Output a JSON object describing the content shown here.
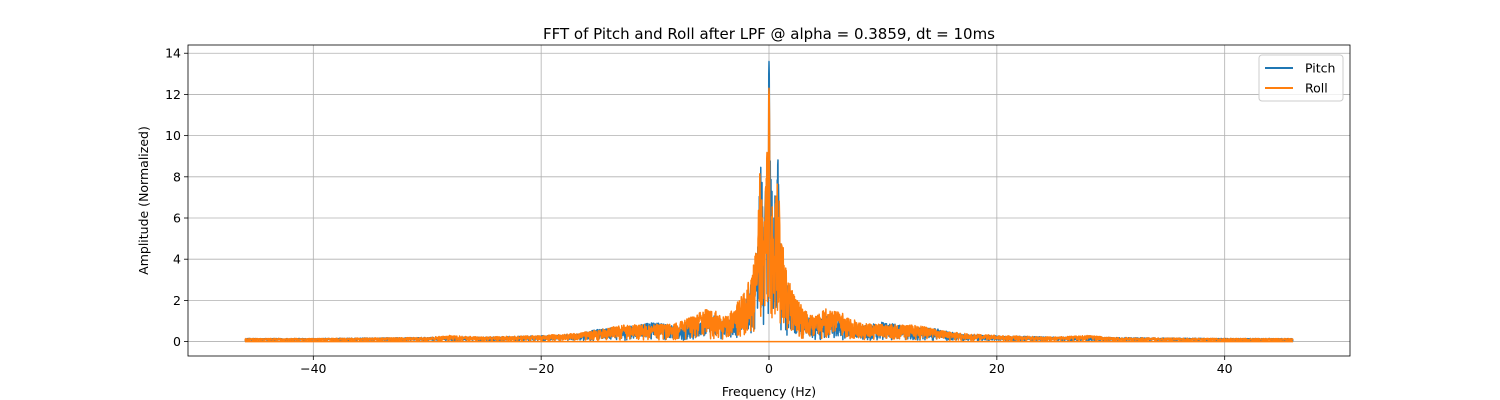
{
  "chart_data": {
    "type": "line",
    "title": "FFT of Pitch and Roll after LPF @ alpha = 0.3859, dt = 10ms",
    "xlabel": "Frequency (Hz)",
    "ylabel": "Amplitude (Normalized)",
    "xlim": [
      -51,
      51
    ],
    "ylim": [
      -0.7,
      14.4
    ],
    "xticks": [
      -40,
      -20,
      0,
      20,
      40
    ],
    "yticks": [
      0,
      2,
      4,
      6,
      8,
      10,
      12,
      14
    ],
    "xtick_labels": [
      "−40",
      "−20",
      "0",
      "20",
      "40"
    ],
    "ytick_labels": [
      "0",
      "2",
      "4",
      "6",
      "8",
      "10",
      "12",
      "14"
    ],
    "grid": true,
    "legend_position": "top-right",
    "x_range": [
      -46,
      46
    ],
    "series": [
      {
        "name": "Pitch",
        "color": "#1f77b4",
        "envelope": [
          [
            -46,
            0.15
          ],
          [
            -40,
            0.15
          ],
          [
            -30,
            0.2
          ],
          [
            -25,
            0.22
          ],
          [
            -20,
            0.28
          ],
          [
            -17,
            0.35
          ],
          [
            -15,
            0.6
          ],
          [
            -12,
            0.75
          ],
          [
            -10,
            0.95
          ],
          [
            -8,
            0.75
          ],
          [
            -6,
            1.0
          ],
          [
            -5,
            1.4
          ],
          [
            -4,
            1.0
          ],
          [
            -3,
            1.3
          ],
          [
            -2,
            2.0
          ],
          [
            -1.5,
            3.0
          ],
          [
            -1,
            5.0
          ],
          [
            -0.8,
            9.2
          ],
          [
            -0.5,
            7.0
          ],
          [
            -0.2,
            8.0
          ],
          [
            0,
            13.6
          ],
          [
            0.2,
            8.0
          ],
          [
            0.5,
            7.0
          ],
          [
            0.8,
            9.2
          ],
          [
            1,
            5.0
          ],
          [
            1.5,
            3.0
          ],
          [
            2,
            2.0
          ],
          [
            3,
            1.3
          ],
          [
            4,
            1.0
          ],
          [
            5,
            1.4
          ],
          [
            6,
            1.0
          ],
          [
            8,
            0.75
          ],
          [
            10,
            0.95
          ],
          [
            12,
            0.75
          ],
          [
            15,
            0.6
          ],
          [
            17,
            0.35
          ],
          [
            20,
            0.28
          ],
          [
            25,
            0.22
          ],
          [
            30,
            0.2
          ],
          [
            40,
            0.15
          ],
          [
            46,
            0.15
          ]
        ]
      },
      {
        "name": "Roll",
        "color": "#ff7f0e",
        "envelope": [
          [
            -46,
            0.15
          ],
          [
            -40,
            0.15
          ],
          [
            -30,
            0.2
          ],
          [
            -28,
            0.3
          ],
          [
            -25,
            0.22
          ],
          [
            -20,
            0.3
          ],
          [
            -17,
            0.4
          ],
          [
            -15,
            0.55
          ],
          [
            -13,
            0.8
          ],
          [
            -10,
            0.85
          ],
          [
            -8,
            0.9
          ],
          [
            -6,
            1.5
          ],
          [
            -5,
            1.6
          ],
          [
            -4,
            1.2
          ],
          [
            -3,
            1.7
          ],
          [
            -2,
            2.6
          ],
          [
            -1.5,
            3.5
          ],
          [
            -1,
            6.0
          ],
          [
            -0.8,
            8.3
          ],
          [
            -0.4,
            6.0
          ],
          [
            0,
            12.3
          ],
          [
            0.4,
            6.0
          ],
          [
            0.8,
            8.3
          ],
          [
            1,
            6.0
          ],
          [
            1.5,
            3.5
          ],
          [
            2,
            2.6
          ],
          [
            3,
            1.7
          ],
          [
            4,
            1.2
          ],
          [
            5,
            1.6
          ],
          [
            6,
            1.5
          ],
          [
            8,
            0.9
          ],
          [
            10,
            0.85
          ],
          [
            13,
            0.8
          ],
          [
            15,
            0.55
          ],
          [
            17,
            0.4
          ],
          [
            20,
            0.3
          ],
          [
            25,
            0.22
          ],
          [
            28,
            0.3
          ],
          [
            30,
            0.2
          ],
          [
            40,
            0.15
          ],
          [
            46,
            0.15
          ]
        ]
      }
    ]
  }
}
